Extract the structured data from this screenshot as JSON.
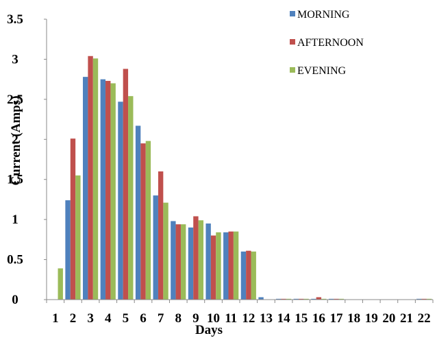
{
  "chart_data": {
    "type": "bar",
    "title": "",
    "xlabel": "Days",
    "ylabel": "Current (Amps)",
    "ylim": [
      0,
      3.5
    ],
    "yticks": [
      "0",
      "0.5",
      "1",
      "1.5",
      "2",
      "2.5",
      "3",
      "3.5"
    ],
    "categories": [
      "1",
      "2",
      "3",
      "4",
      "5",
      "6",
      "7",
      "8",
      "9",
      "10",
      "11",
      "12",
      "13",
      "14",
      "15",
      "16",
      "17",
      "18",
      "19",
      "20",
      "21",
      "22"
    ],
    "grid": false,
    "legend_position": "top-right",
    "series": [
      {
        "name": "MORNING",
        "color": "#4f81bd",
        "values": [
          0,
          1.24,
          2.78,
          2.75,
          2.47,
          2.17,
          1.3,
          0.98,
          0.9,
          0.95,
          0.84,
          0.6,
          0.03,
          0.01,
          0.01,
          0.01,
          0.01,
          0,
          0,
          0,
          0,
          0.01
        ]
      },
      {
        "name": "AFTERNOON",
        "color": "#c0504d",
        "values": [
          0,
          2.01,
          3.04,
          2.73,
          2.88,
          1.95,
          1.6,
          0.94,
          1.04,
          0.8,
          0.85,
          0.61,
          0,
          0.01,
          0.01,
          0.03,
          0.01,
          0,
          0,
          0,
          0,
          0.01
        ]
      },
      {
        "name": "EVENING",
        "color": "#9bbb59",
        "values": [
          0.39,
          1.55,
          3.01,
          2.7,
          2.54,
          1.98,
          1.21,
          0.94,
          0.99,
          0.84,
          0.85,
          0.6,
          0,
          0.01,
          0.01,
          0.01,
          0.01,
          0,
          0,
          0,
          0,
          0.01
        ]
      }
    ]
  }
}
